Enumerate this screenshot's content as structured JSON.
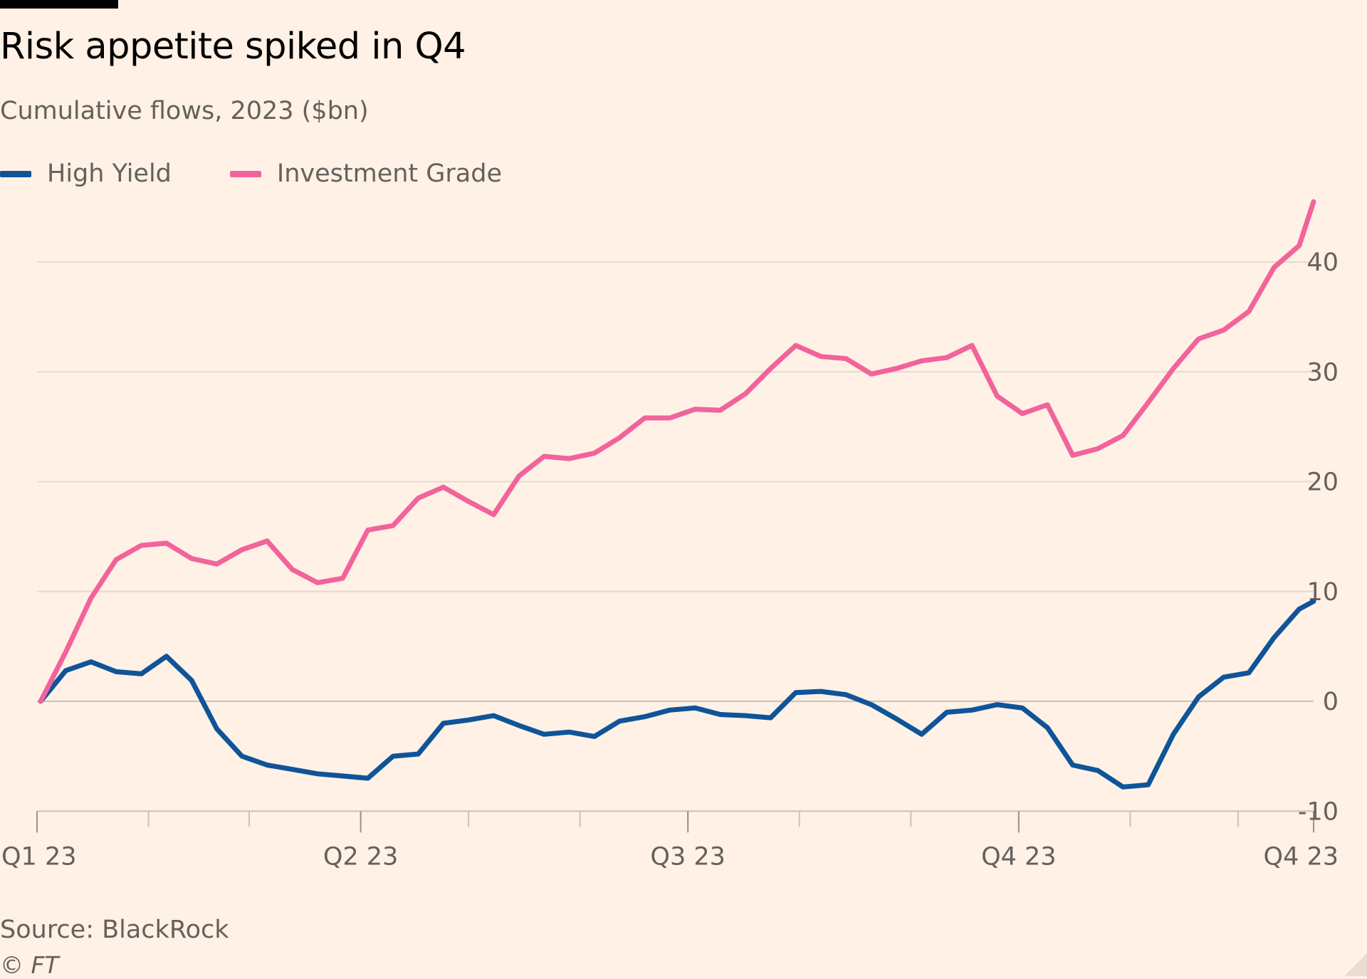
{
  "header": {
    "title": "Risk appetite spiked in Q4",
    "subtitle": "Cumulative flows, 2023 ($bn)"
  },
  "footer": {
    "source": "Source: BlackRock",
    "copyright": "© FT"
  },
  "colors": {
    "background": "#FFF1E5",
    "high_yield": "#0F5499",
    "investment_grade": "#F2639B",
    "grid": "#E6D9CE",
    "zero_line": "#CCC1B7",
    "axis_text": "#66605C"
  },
  "chart_data": {
    "type": "line",
    "title": "Risk appetite spiked in Q4",
    "subtitle": "Cumulative flows, 2023 ($bn)",
    "xlabel": "",
    "ylabel": "",
    "y_axis_position": "right",
    "ylim": [
      -10,
      47
    ],
    "y_ticks": [
      -10,
      0,
      10,
      20,
      30,
      40
    ],
    "x_tick_labels": [
      "Q1 23",
      "Q2 23",
      "Q3 23",
      "Q4 23",
      "Q4 23"
    ],
    "legend_position": "top-left",
    "grid": true,
    "series": [
      {
        "name": "High Yield",
        "color": "#0F5499",
        "x": [
          "2023-01-02",
          "2023-01-09",
          "2023-01-16",
          "2023-01-23",
          "2023-01-30",
          "2023-02-06",
          "2023-02-13",
          "2023-02-20",
          "2023-02-27",
          "2023-03-06",
          "2023-03-13",
          "2023-03-20",
          "2023-03-27",
          "2023-04-03",
          "2023-04-10",
          "2023-04-17",
          "2023-04-24",
          "2023-05-01",
          "2023-05-08",
          "2023-05-15",
          "2023-05-22",
          "2023-05-29",
          "2023-06-05",
          "2023-06-12",
          "2023-06-19",
          "2023-06-26",
          "2023-07-03",
          "2023-07-10",
          "2023-07-17",
          "2023-07-24",
          "2023-07-31",
          "2023-08-07",
          "2023-08-14",
          "2023-08-21",
          "2023-08-28",
          "2023-09-04",
          "2023-09-11",
          "2023-09-18",
          "2023-09-25",
          "2023-10-02",
          "2023-10-09",
          "2023-10-16",
          "2023-10-23",
          "2023-10-30",
          "2023-11-06",
          "2023-11-13",
          "2023-11-20",
          "2023-11-27",
          "2023-12-04",
          "2023-12-11",
          "2023-12-18",
          "2023-12-22"
        ],
        "values": [
          0.0,
          2.8,
          3.6,
          2.7,
          2.5,
          4.1,
          1.9,
          -2.5,
          -5.0,
          -5.8,
          -6.2,
          -6.6,
          -6.8,
          -7.0,
          -5.0,
          -4.8,
          -2.0,
          -1.7,
          -1.3,
          -2.2,
          -3.0,
          -2.8,
          -3.2,
          -1.8,
          -1.4,
          -0.8,
          -0.6,
          -1.2,
          -1.3,
          -1.5,
          0.8,
          0.9,
          0.6,
          -0.3,
          -1.6,
          -3.0,
          -1.0,
          -0.8,
          -0.3,
          -0.6,
          -2.4,
          -5.8,
          -6.3,
          -7.8,
          -7.6,
          -3.0,
          0.4,
          2.2,
          2.6,
          5.8,
          8.4,
          9.1
        ],
        "end_value": 9.1
      },
      {
        "name": "Investment Grade",
        "color": "#F2639B",
        "x": [
          "2023-01-02",
          "2023-01-09",
          "2023-01-16",
          "2023-01-23",
          "2023-01-30",
          "2023-02-06",
          "2023-02-13",
          "2023-02-20",
          "2023-02-27",
          "2023-03-06",
          "2023-03-13",
          "2023-03-20",
          "2023-03-27",
          "2023-04-03",
          "2023-04-10",
          "2023-04-17",
          "2023-04-24",
          "2023-05-01",
          "2023-05-08",
          "2023-05-15",
          "2023-05-22",
          "2023-05-29",
          "2023-06-05",
          "2023-06-12",
          "2023-06-19",
          "2023-06-26",
          "2023-07-03",
          "2023-07-10",
          "2023-07-17",
          "2023-07-24",
          "2023-07-31",
          "2023-08-07",
          "2023-08-14",
          "2023-08-21",
          "2023-08-28",
          "2023-09-04",
          "2023-09-11",
          "2023-09-18",
          "2023-09-25",
          "2023-10-02",
          "2023-10-09",
          "2023-10-16",
          "2023-10-23",
          "2023-10-30",
          "2023-11-06",
          "2023-11-13",
          "2023-11-20",
          "2023-11-27",
          "2023-12-04",
          "2023-12-11",
          "2023-12-18",
          "2023-12-22"
        ],
        "values": [
          0.0,
          4.5,
          9.4,
          12.9,
          14.2,
          14.4,
          13.0,
          12.5,
          13.8,
          14.6,
          12.0,
          10.8,
          11.2,
          15.6,
          16.0,
          18.5,
          19.5,
          18.2,
          17.0,
          20.5,
          22.3,
          22.1,
          22.6,
          24.0,
          25.8,
          25.8,
          26.6,
          26.5,
          28.0,
          30.3,
          32.4,
          31.4,
          31.2,
          29.8,
          30.3,
          31.0,
          31.3,
          32.4,
          27.8,
          26.2,
          27.0,
          22.4,
          23.0,
          24.2,
          27.2,
          30.3,
          33.0,
          33.8,
          35.5,
          39.5,
          41.5,
          45.5
        ],
        "end_value": 45.5
      }
    ]
  }
}
